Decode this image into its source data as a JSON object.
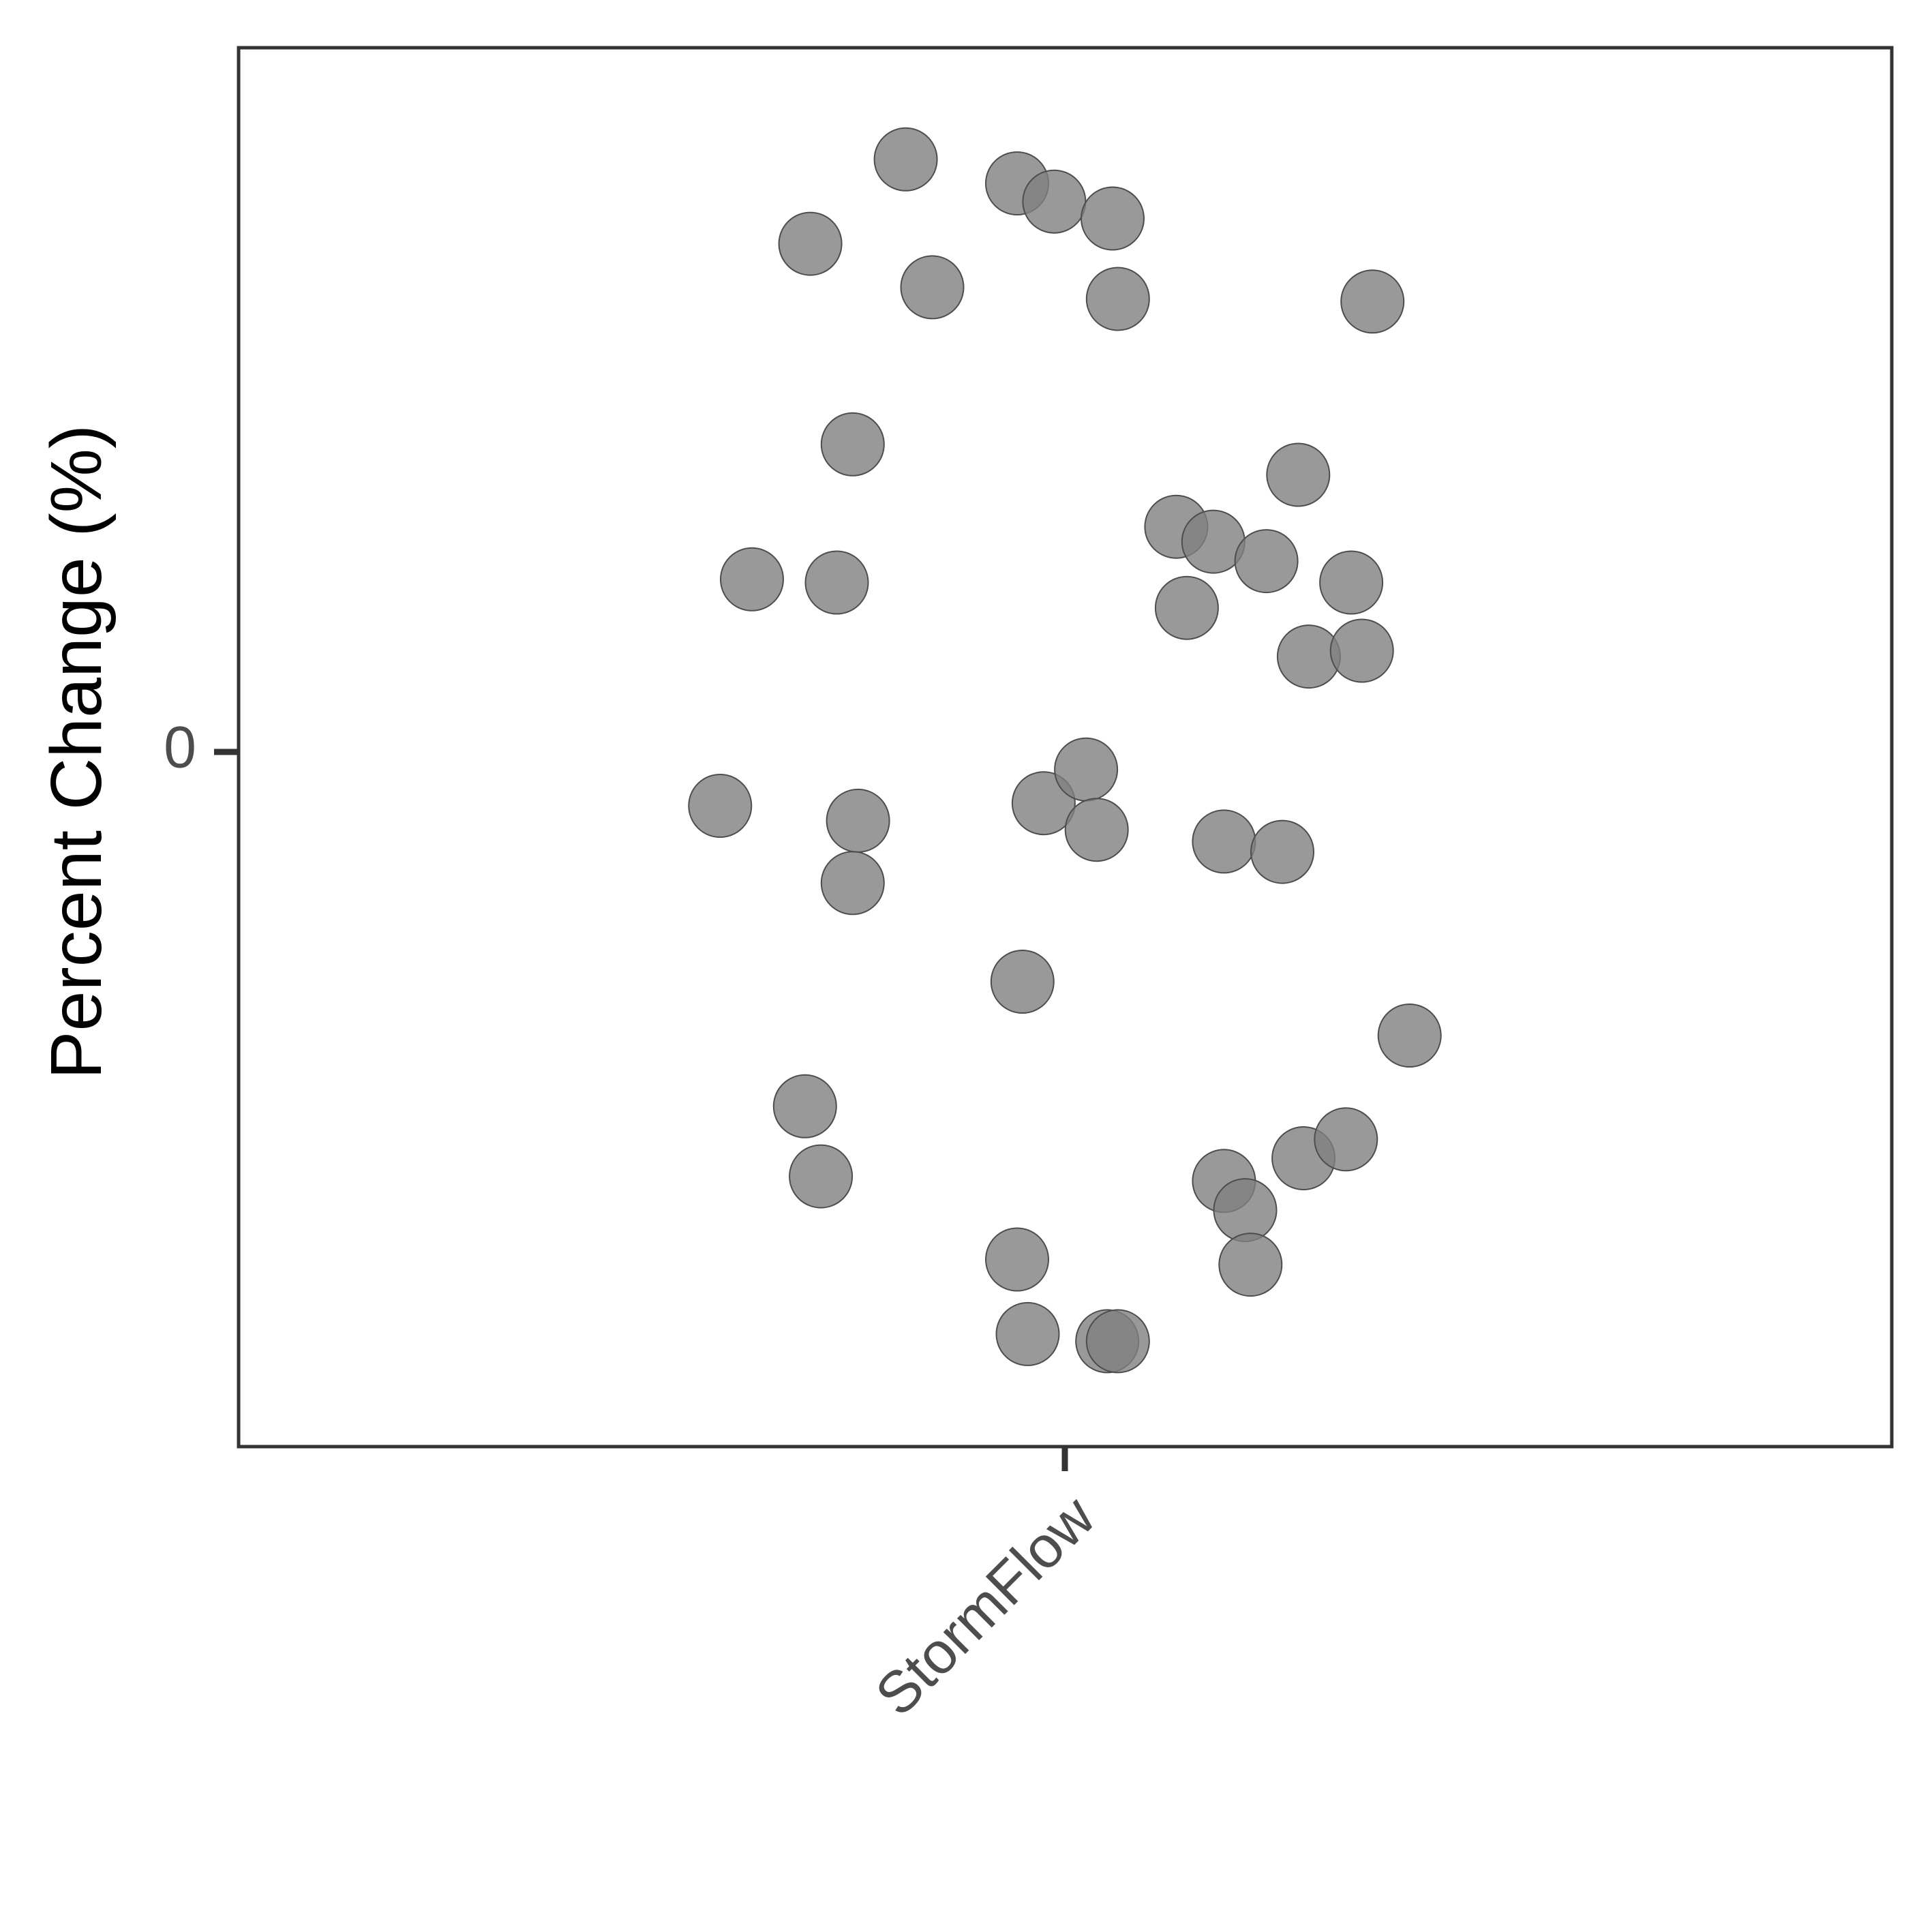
{
  "chart_data": {
    "type": "scatter",
    "title": "",
    "xlabel": "",
    "ylabel": "Percent Change (%)",
    "categories": [
      "StormFlow"
    ],
    "y_ticks": [
      {
        "value": 0,
        "label": "0"
      }
    ],
    "ylim": [
      -100,
      100
    ],
    "grid": false,
    "legend": "none",
    "point_color": "#7f7f7f",
    "point_stroke": "#4d4d4d",
    "series": [
      {
        "category": "StormFlow",
        "points": [
          {
            "x": -0.3,
            "y": 91.3
          },
          {
            "x": -0.48,
            "y": 78.3
          },
          {
            "x": -0.25,
            "y": 71.6
          },
          {
            "x": -0.09,
            "y": 87.6
          },
          {
            "x": -0.02,
            "y": 84.8
          },
          {
            "x": 0.09,
            "y": 82.2
          },
          {
            "x": 0.1,
            "y": 69.8
          },
          {
            "x": 0.58,
            "y": 69.4
          },
          {
            "x": -0.4,
            "y": 47.4
          },
          {
            "x": -0.59,
            "y": 26.6
          },
          {
            "x": -0.43,
            "y": 26.1
          },
          {
            "x": 0.21,
            "y": 34.7
          },
          {
            "x": 0.28,
            "y": 32.4
          },
          {
            "x": 0.38,
            "y": 29.4
          },
          {
            "x": 0.44,
            "y": 42.7
          },
          {
            "x": 0.54,
            "y": 26.1
          },
          {
            "x": 0.23,
            "y": 22.2
          },
          {
            "x": 0.46,
            "y": 14.7
          },
          {
            "x": 0.56,
            "y": 15.6
          },
          {
            "x": -0.65,
            "y": -8.3
          },
          {
            "x": -0.39,
            "y": -10.6
          },
          {
            "x": -0.4,
            "y": -20.2
          },
          {
            "x": -0.04,
            "y": -7.9
          },
          {
            "x": 0.04,
            "y": -2.7
          },
          {
            "x": 0.06,
            "y": -12.0
          },
          {
            "x": 0.3,
            "y": -13.8
          },
          {
            "x": 0.41,
            "y": -15.4
          },
          {
            "x": -0.08,
            "y": -35.4
          },
          {
            "x": 0.65,
            "y": -43.7
          },
          {
            "x": -0.49,
            "y": -54.6
          },
          {
            "x": -0.46,
            "y": -65.4
          },
          {
            "x": 0.3,
            "y": -66.1
          },
          {
            "x": 0.34,
            "y": -70.6
          },
          {
            "x": 0.35,
            "y": -79.0
          },
          {
            "x": 0.45,
            "y": -62.6
          },
          {
            "x": 0.53,
            "y": -59.7
          },
          {
            "x": -0.09,
            "y": -78.2
          },
          {
            "x": -0.07,
            "y": -89.7
          },
          {
            "x": 0.08,
            "y": -90.8
          },
          {
            "x": 0.1,
            "y": -90.8
          }
        ]
      }
    ]
  }
}
